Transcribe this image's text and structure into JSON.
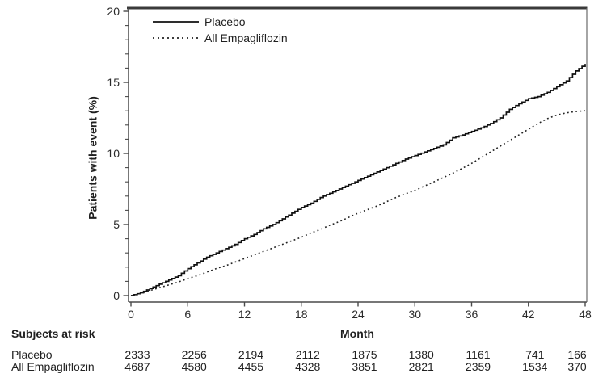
{
  "chart_data": {
    "type": "line",
    "title": "",
    "ylabel": "Patients with event (%)",
    "xlabel": "Month",
    "xlim": [
      0,
      48
    ],
    "ylim": [
      0,
      20
    ],
    "x_ticks": [
      0,
      6,
      12,
      18,
      24,
      30,
      36,
      42,
      48
    ],
    "y_ticks_major": [
      0,
      5,
      10,
      15,
      20
    ],
    "y_minor_tick_step": 1,
    "grid": false,
    "legend_position": "inside-top-left",
    "line_color": "#111111",
    "series": [
      {
        "name": "Placebo",
        "line_style": "solid",
        "x_step_months": 1,
        "values": [
          0,
          0.2,
          0.5,
          0.8,
          1.1,
          1.4,
          1.9,
          2.3,
          2.7,
          3.0,
          3.3,
          3.6,
          4.0,
          4.3,
          4.7,
          5.0,
          5.4,
          5.8,
          6.2,
          6.5,
          6.9,
          7.2,
          7.5,
          7.8,
          8.1,
          8.4,
          8.7,
          9.0,
          9.3,
          9.6,
          9.85,
          10.1,
          10.35,
          10.6,
          11.1,
          11.3,
          11.55,
          11.8,
          12.1,
          12.5,
          13.1,
          13.5,
          13.85,
          14.0,
          14.3,
          14.7,
          15.1,
          15.8,
          16.3
        ]
      },
      {
        "name": "All Empagliflozin",
        "line_style": "dotted",
        "x_step_months": 1,
        "values": [
          0,
          0.15,
          0.35,
          0.55,
          0.75,
          0.95,
          1.2,
          1.4,
          1.65,
          1.9,
          2.1,
          2.35,
          2.6,
          2.85,
          3.1,
          3.35,
          3.6,
          3.85,
          4.1,
          4.4,
          4.65,
          4.95,
          5.2,
          5.5,
          5.8,
          6.05,
          6.3,
          6.6,
          6.9,
          7.15,
          7.4,
          7.7,
          8.0,
          8.3,
          8.6,
          8.95,
          9.3,
          9.7,
          10.1,
          10.5,
          10.9,
          11.3,
          11.7,
          12.1,
          12.45,
          12.7,
          12.85,
          12.95,
          13.0
        ]
      }
    ],
    "at_risk": {
      "heading": "Subjects at risk",
      "columns": [
        0,
        6,
        12,
        18,
        24,
        30,
        36,
        42,
        48
      ],
      "rows": [
        {
          "label": "Placebo",
          "values": [
            "2333",
            "2256",
            "2194",
            "2112",
            "1875",
            "1380",
            "1161",
            "741",
            "166"
          ]
        },
        {
          "label": "All Empagliflozin",
          "values": [
            "4687",
            "4580",
            "4455",
            "4328",
            "3851",
            "2821",
            "2359",
            "1534",
            "370"
          ]
        }
      ]
    }
  }
}
